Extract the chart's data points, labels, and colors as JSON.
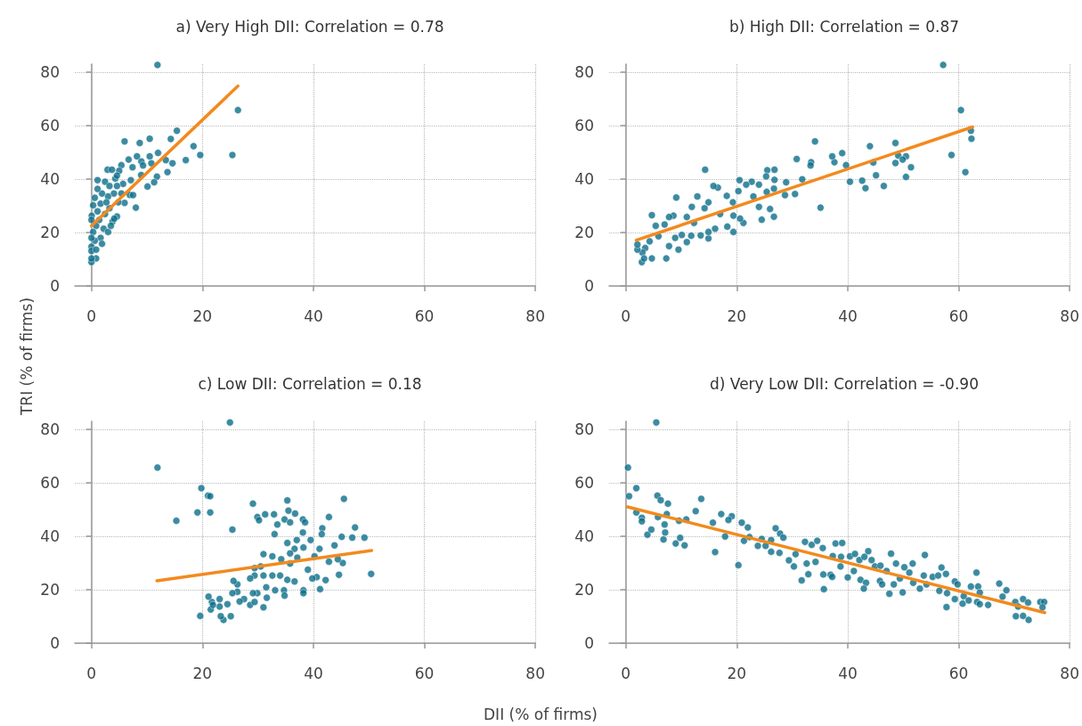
{
  "chart_data": [
    {
      "type": "scatter",
      "title": "a) Very High DII: Correlation = 0.78",
      "xlim": [
        -3,
        80
      ],
      "ylim": [
        0,
        83
      ],
      "xticks": [
        0,
        20,
        40,
        60,
        80
      ],
      "yticks": [
        0,
        20,
        40,
        60,
        80
      ],
      "grid": true,
      "marker": "circle",
      "series": [
        {
          "type": "scatter",
          "color": "#0b6e8a",
          "x": [
            11.9,
            26.4,
            25.4,
            19.6,
            18.4,
            17.0,
            15.4,
            14.3,
            12.0,
            10.5,
            8.7,
            5.97,
            6.7,
            8.2,
            10.5,
            9.0,
            9.3,
            10.8,
            13.4,
            14.6,
            13.7,
            11.8,
            11.3,
            10.1,
            8.96,
            7.4,
            5.4,
            5.0,
            2.9,
            3.7,
            5.7,
            7.1,
            6.9,
            7.5,
            5.97,
            8.0,
            1.1,
            2.45,
            4.3,
            4.6,
            4.05,
            3.0,
            1.9,
            0.6,
            1.1,
            0.3,
            1.65,
            3.25,
            4.6,
            3.8,
            2.45,
            1.4,
            0.05,
            0,
            0.85,
            2.2,
            3.0,
            1.65,
            1.9,
            0.6,
            0,
            0,
            0.85,
            0.85,
            0,
            0,
            0.3,
            0,
            3.5,
            4.1,
            5.4,
            3.25,
            4.6,
            4.85,
            2.7,
            1.1
          ],
          "values": [
            82.7,
            65.8,
            49.0,
            49.0,
            52.3,
            47.1,
            58.1,
            55.0,
            49.8,
            55.1,
            53.5,
            54.1,
            47.3,
            48.5,
            48.5,
            46.6,
            45.1,
            45.9,
            47.1,
            45.9,
            42.6,
            40.9,
            38.8,
            37.2,
            41.5,
            44.4,
            45.2,
            43.1,
            43.5,
            43.5,
            38.2,
            39.6,
            34.1,
            34.0,
            31.1,
            29.3,
            39.6,
            39.0,
            40.2,
            37.4,
            34.6,
            33.5,
            34.6,
            33.0,
            36.3,
            30.2,
            30.8,
            29.1,
            26.0,
            24.1,
            26.9,
            24.7,
            26.3,
            24.7,
            22.5,
            21.4,
            20.2,
            18.0,
            15.8,
            16.9,
            14.7,
            13.1,
            13.6,
            10.3,
            8.9,
            10.3,
            20.2,
            18.0,
            22.5,
            25.2,
            34.6,
            37.4,
            41.3,
            31.3,
            31.3,
            27.9
          ]
        },
        {
          "type": "line",
          "color": "#f28a1e",
          "marker": "none",
          "x": [
            0,
            26.4
          ],
          "values": [
            22.5,
            74.8
          ]
        }
      ]
    },
    {
      "type": "scatter",
      "title": "b) High DII: Correlation = 0.87",
      "xlim": [
        -3,
        80
      ],
      "ylim": [
        0,
        83
      ],
      "xticks": [
        0,
        20,
        40,
        60,
        80
      ],
      "yticks": [
        0,
        20,
        40,
        60,
        80
      ],
      "grid": true,
      "marker": "circle",
      "series": [
        {
          "type": "scatter",
          "color": "#0b6e8a",
          "x": [
            57.2,
            60.4,
            62.2,
            62.3,
            58.7,
            61.2,
            51.4,
            50.5,
            50.5,
            49.1,
            48.6,
            48.6,
            49.9,
            46.5,
            45.1,
            44.6,
            44.0,
            43.2,
            42.6,
            40.4,
            39.7,
            39.0,
            37.6,
            37.2,
            35.1,
            34.1,
            33.4,
            33.3,
            31.8,
            30.8,
            30.5,
            28.9,
            28.7,
            26.8,
            26.8,
            26.7,
            26.7,
            26.0,
            25.5,
            25.3,
            25.4,
            24.5,
            24.0,
            24.0,
            23.0,
            22.7,
            21.7,
            21.2,
            20.6,
            20.5,
            20.3,
            19.4,
            19.4,
            19.3,
            18.3,
            18.2,
            17.0,
            16.6,
            15.8,
            16.1,
            14.9,
            14.9,
            14.9,
            14.3,
            14.2,
            13.5,
            12.9,
            12.3,
            11.9,
            11.8,
            11.0,
            11.0,
            10.1,
            9.5,
            9.1,
            8.9,
            8.6,
            7.8,
            7.8,
            7.3,
            7.0,
            5.9,
            5.4,
            4.7,
            4.7,
            4.3,
            3.5,
            3.0,
            2.9,
            2.1,
            2.1,
            3.3
          ],
          "values": [
            82.7,
            65.8,
            58.1,
            55.1,
            49.0,
            42.6,
            44.4,
            40.8,
            48.5,
            48.8,
            46.0,
            53.5,
            47.3,
            37.4,
            41.4,
            46.2,
            52.3,
            36.6,
            39.4,
            39.0,
            45.2,
            49.7,
            46.3,
            48.5,
            29.3,
            54.1,
            46.3,
            45.1,
            39.9,
            47.5,
            34.4,
            38.8,
            34.0,
            43.5,
            39.7,
            36.4,
            25.9,
            28.8,
            43.3,
            41.0,
            35.2,
            24.8,
            29.6,
            37.9,
            33.5,
            39.0,
            37.9,
            23.6,
            25.2,
            39.6,
            35.5,
            20.2,
            26.3,
            31.3,
            22.2,
            33.7,
            26.9,
            36.8,
            37.4,
            21.4,
            17.8,
            20.2,
            31.3,
            43.5,
            29.1,
            18.9,
            33.5,
            23.6,
            29.6,
            18.8,
            25.8,
            16.4,
            19.1,
            13.6,
            33.1,
            18.0,
            26.3,
            25.8,
            14.9,
            10.3,
            23.0,
            18.6,
            22.5,
            26.5,
            10.3,
            16.7,
            14.2,
            12.5,
            8.9,
            13.6,
            15.5,
            10.3
          ]
        },
        {
          "type": "line",
          "color": "#f28a1e",
          "marker": "none",
          "x": [
            1.9,
            62.5
          ],
          "values": [
            17.1,
            59.5
          ]
        }
      ]
    },
    {
      "type": "scatter",
      "title": "c) Low DII: Correlation = 0.18",
      "xlabel": "DII (% of firms)",
      "ylabel": "TRI (% of firms)",
      "xlim": [
        -3,
        80
      ],
      "ylim": [
        0,
        83
      ],
      "xticks": [
        0,
        20,
        40,
        60,
        80
      ],
      "yticks": [
        0,
        20,
        40,
        60,
        80
      ],
      "grid": true,
      "marker": "circle",
      "series": [
        {
          "type": "scatter",
          "color": "#0b6e8a",
          "x": [
            24.96,
            11.9,
            15.3,
            19.8,
            21.0,
            21.4,
            19.1,
            21.4,
            25.4,
            29.1,
            29.9,
            30.2,
            31.3,
            32.9,
            33.5,
            33.0,
            35.3,
            35.5,
            34.8,
            35.8,
            36.7,
            38.1,
            38.5,
            38.1,
            42.8,
            45.5,
            47.5,
            47.0,
            49.2,
            50.4,
            45.1,
            44.6,
            45.3,
            44.4,
            43.8,
            42.8,
            42.2,
            41.6,
            41.5,
            41.2,
            40.6,
            39.8,
            41.1,
            40.2,
            39.5,
            38.2,
            38.2,
            38.2,
            39.0,
            37.0,
            36.6,
            37.1,
            35.8,
            35.3,
            35.8,
            35.3,
            36.6,
            34.7,
            34.8,
            34.2,
            34.0,
            33.1,
            32.6,
            32.6,
            31.0,
            31.0,
            31.5,
            31.6,
            31.0,
            30.5,
            29.9,
            29.4,
            29.4,
            28.6,
            28.6,
            29.4,
            29.1,
            27.5,
            26.7,
            26.3,
            26.3,
            25.6,
            25.4,
            24.5,
            25.1,
            23.8,
            23.3,
            23.1,
            23.1,
            21.7,
            21.5,
            21.1,
            19.6,
            21.9
          ],
          "values": [
            82.6,
            65.7,
            45.8,
            58.0,
            55.2,
            55.0,
            48.9,
            48.9,
            42.5,
            52.2,
            47.2,
            46.0,
            48.2,
            48.2,
            44.4,
            40.8,
            53.4,
            49.6,
            46.3,
            45.2,
            48.5,
            46.3,
            45.2,
            41.4,
            47.2,
            54.0,
            43.3,
            39.5,
            39.5,
            25.9,
            39.8,
            25.6,
            30.0,
            31.4,
            36.6,
            30.5,
            23.6,
            43.0,
            40.8,
            20.2,
            24.7,
            24.2,
            35.3,
            32.5,
            38.6,
            35.8,
            19.8,
            18.7,
            27.5,
            38.6,
            35.3,
            32.0,
            33.6,
            37.5,
            29.8,
            23.7,
            23.1,
            19.8,
            17.8,
            31.4,
            25.3,
            19.8,
            25.3,
            32.5,
            33.3,
            25.3,
            20.9,
            17.0,
            13.4,
            28.7,
            18.7,
            28.1,
            25.3,
            24.2,
            14.3,
            15.4,
            18.7,
            16.5,
            15.6,
            22.0,
            19.2,
            23.3,
            18.7,
            14.6,
            10.1,
            8.7,
            10.1,
            13.7,
            16.5,
            15.4,
            12.6,
            17.4,
            10.2,
            14.3
          ]
        },
        {
          "type": "line",
          "color": "#f28a1e",
          "marker": "none",
          "x": [
            11.8,
            50.5
          ],
          "values": [
            23.3,
            34.7
          ]
        }
      ]
    },
    {
      "type": "scatter",
      "title": "d) Very Low DII: Correlation = -0.90",
      "xlim": [
        -3,
        80
      ],
      "ylim": [
        0,
        83
      ],
      "xticks": [
        0,
        20,
        40,
        60,
        80
      ],
      "yticks": [
        0,
        20,
        40,
        60,
        80
      ],
      "grid": true,
      "marker": "circle",
      "series": [
        {
          "type": "scatter",
          "color": "#0b6e8a",
          "x": [
            5.5,
            0.4,
            0.6,
            1.9,
            1.9,
            2.9,
            2.9,
            3.9,
            4.6,
            5.7,
            6.3,
            7.6,
            7.4,
            5.8,
            7.0,
            7.1,
            6.8,
            9.0,
            9.8,
            10.6,
            10.9,
            9.6,
            12.6,
            13.6,
            15.7,
            16.1,
            17.2,
            17.9,
            19.1,
            18.5,
            20.3,
            20.9,
            22.0,
            21.3,
            22.3,
            23.8,
            24.5,
            25.2,
            26.2,
            26.2,
            27.0,
            27.8,
            28.4,
            27.7,
            29.4,
            30.3,
            30.6,
            31.7,
            32.3,
            32.6,
            32.9,
            33.5,
            34.5,
            34.2,
            35.5,
            35.6,
            35.7,
            36.9,
            37.2,
            37.3,
            37.8,
            39.0,
            38.8,
            38.7,
            40.0,
            40.4,
            41.1,
            41.3,
            42.1,
            42.3,
            43.0,
            43.3,
            42.9,
            43.7,
            44.3,
            44.9,
            45.9,
            45.8,
            46.2,
            47.0,
            47.5,
            47.8,
            48.3,
            48.7,
            49.4,
            49.9,
            50.2,
            51.1,
            51.7,
            51.8,
            53.0,
            53.9,
            53.7,
            54.2,
            55.3,
            56.3,
            56.5,
            56.9,
            57.7,
            57.8,
            57.9,
            59.3,
            59.3,
            59.8,
            60.7,
            60.9,
            61.8,
            62.2,
            63.2,
            63.5,
            63.8,
            63.3,
            63.8,
            65.3,
            67.3,
            67.9,
            68.6,
            70.2,
            70.3,
            70.7,
            71.6,
            71.6,
            72.6,
            72.5,
            74.7,
            75.4,
            75.1
          ],
          "values": [
            82.6,
            65.7,
            55.0,
            58.0,
            48.9,
            46.9,
            45.6,
            40.6,
            42.5,
            55.2,
            53.5,
            52.2,
            48.3,
            47.2,
            44.4,
            41.4,
            38.8,
            37.3,
            39.4,
            36.6,
            46.3,
            45.8,
            49.4,
            54.0,
            45.1,
            34.1,
            48.3,
            39.9,
            47.5,
            46.1,
            29.2,
            45.1,
            43.3,
            38.3,
            39.7,
            36.4,
            39.0,
            36.4,
            34.2,
            38.6,
            43.0,
            41.0,
            39.5,
            33.8,
            31.0,
            28.7,
            33.3,
            23.5,
            37.9,
            29.8,
            25.8,
            36.8,
            38.3,
            30.4,
            35.6,
            25.7,
            20.2,
            25.6,
            24.8,
            32.6,
            37.3,
            37.5,
            32.3,
            28.7,
            24.6,
            32.5,
            27.0,
            33.4,
            31.1,
            23.7,
            32.3,
            22.6,
            20.4,
            34.4,
            31.1,
            28.7,
            29.0,
            23.3,
            22.0,
            27.0,
            18.5,
            33.5,
            22.0,
            29.8,
            24.2,
            19.0,
            28.4,
            26.4,
            29.8,
            22.6,
            20.4,
            33.0,
            25.3,
            22.0,
            24.8,
            25.3,
            19.6,
            28.3,
            25.9,
            13.5,
            18.7,
            23.1,
            16.5,
            22.0,
            14.8,
            17.6,
            16.0,
            21.2,
            26.4,
            21.2,
            18.9,
            15.4,
            14.6,
            14.3,
            22.3,
            17.4,
            19.8,
            15.4,
            10.1,
            13.7,
            16.5,
            10.2,
            8.7,
            15.2,
            15.4,
            15.4,
            13.4
          ]
        },
        {
          "type": "line",
          "color": "#f28a1e",
          "marker": "none",
          "x": [
            0.3,
            75.5
          ],
          "values": [
            51.0,
            11.4
          ]
        }
      ]
    }
  ]
}
